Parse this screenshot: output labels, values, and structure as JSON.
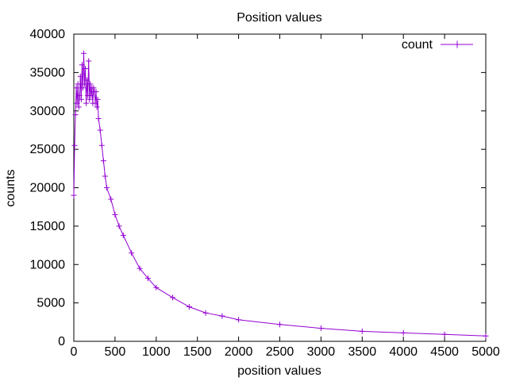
{
  "chart_data": {
    "type": "line",
    "title": "Position values",
    "xlabel": "position values",
    "ylabel": "counts",
    "xlim": [
      0,
      5000
    ],
    "ylim": [
      0,
      40000
    ],
    "xticks": [
      0,
      500,
      1000,
      1500,
      2000,
      2500,
      3000,
      3500,
      4000,
      4500,
      5000
    ],
    "yticks": [
      0,
      5000,
      10000,
      15000,
      20000,
      25000,
      30000,
      35000,
      40000
    ],
    "grid": false,
    "legend_position": "top-right",
    "series": [
      {
        "name": "count",
        "color": "#9400d3",
        "marker": "plus",
        "x": [
          0,
          10,
          20,
          30,
          40,
          50,
          60,
          70,
          80,
          90,
          100,
          110,
          120,
          130,
          140,
          150,
          160,
          170,
          180,
          190,
          200,
          210,
          220,
          230,
          240,
          250,
          260,
          270,
          280,
          290,
          300,
          320,
          340,
          360,
          380,
          400,
          450,
          500,
          550,
          600,
          700,
          800,
          900,
          1000,
          1200,
          1400,
          1600,
          1800,
          2000,
          2500,
          3000,
          3500,
          4000,
          4500,
          5000
        ],
        "y": [
          19000,
          25500,
          29500,
          33000,
          31000,
          33500,
          30500,
          32000,
          34500,
          31500,
          36000,
          33000,
          37500,
          33500,
          35500,
          31000,
          34000,
          32000,
          36500,
          31500,
          33500,
          32000,
          33000,
          31000,
          33000,
          32500,
          31000,
          32500,
          30500,
          31500,
          29000,
          27500,
          25500,
          23500,
          21500,
          20000,
          18500,
          16500,
          15000,
          13800,
          11500,
          9500,
          8200,
          7000,
          5700,
          4500,
          3700,
          3300,
          2800,
          2200,
          1700,
          1300,
          1100,
          900,
          700
        ]
      }
    ]
  }
}
